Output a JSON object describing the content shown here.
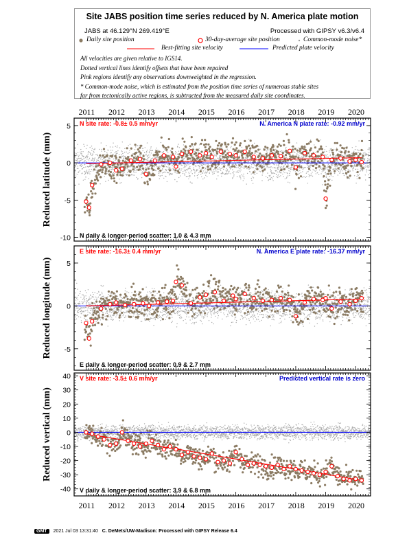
{
  "header": {
    "title": "Site JABS position time series reduced by N. America plate motion",
    "site_coords": "JABS at 46.129°N 269.419°E",
    "processing": "Processed with GIPSY v6.3/v6.4",
    "legend_daily": "Daily site position",
    "legend_avg": "30-day-average site position",
    "legend_cm": "Common-mode noise*",
    "legend_fit": "Best-fitting site velocity",
    "legend_pred": "Predicted plate velocity",
    "notes": [
      "All velocities are given relative to IGS14.",
      "Dotted vertical lines identify offsets that have been repaired",
      "Pink regions identify any observations downweighted in the regression.",
      "* Common-mode noise, which is estimated from the position time series of numerous stable sites",
      "far from tectonically active regions, is subtracted from the measured daily site coordinates."
    ]
  },
  "colors": {
    "daily": "#8b7b63",
    "common_mode": "#aaaaaa",
    "average_fill": "#ffffff",
    "average_edge": "#ff0000",
    "fit": "#ff0000",
    "predicted": "#0000ff",
    "site_rate_text": "#ff0000",
    "plate_rate_text": "#0000cc"
  },
  "chart_data": [
    {
      "type": "scatter",
      "ylabel": "Reduced latitude (mm)",
      "xlim": [
        2010.6,
        2020.5
      ],
      "ylim": [
        -10.5,
        6
      ],
      "yticks": [
        -10,
        -5,
        0,
        5
      ],
      "xticks": [
        2011,
        2012,
        2013,
        2014,
        2015,
        2016,
        2017,
        2018,
        2019,
        2020
      ],
      "site_rate": "N site rate:  -0.8± 0.5 mm/yr",
      "plate_rate": "N. America N plate rate:  -0.92 mm/yr",
      "scatter_text": "N daily & longer-period scatter:    1.0 &    4.3 mm",
      "fit_line": {
        "x": [
          2011.0,
          2020.2
        ],
        "y": [
          -0.1,
          0.7
        ]
      },
      "series": [
        {
          "kind": "30-day-average",
          "x": [
            2011.0,
            2011.1,
            2011.2,
            2011.5,
            2011.8,
            2012.0,
            2012.2,
            2012.5,
            2012.8,
            2013.0,
            2013.3,
            2013.6,
            2013.9,
            2014.0,
            2014.2,
            2014.5,
            2014.8,
            2015.0,
            2015.2,
            2015.5,
            2015.8,
            2016.0,
            2016.3,
            2016.6,
            2016.9,
            2017.2,
            2017.5,
            2017.8,
            2018.0,
            2018.3,
            2018.6,
            2018.9,
            2019.0,
            2019.2,
            2019.5,
            2019.8,
            2020.0,
            2020.2
          ],
          "y": [
            -5.2,
            -6.0,
            -3.0,
            -0.2,
            0.0,
            -1.0,
            -0.8,
            0.3,
            0.5,
            -1.5,
            0.3,
            1.0,
            0.8,
            -0.5,
            1.2,
            1.5,
            1.0,
            1.3,
            0.8,
            1.5,
            1.2,
            1.0,
            1.5,
            0.8,
            0.6,
            1.0,
            0.9,
            1.6,
            -0.6,
            1.3,
            1.0,
            0.8,
            -4.8,
            0.4,
            0.6,
            0.2,
            0.4,
            0.1
          ]
        }
      ]
    },
    {
      "type": "scatter",
      "ylabel": "Reduced longitude (mm)",
      "xlim": [
        2010.6,
        2020.5
      ],
      "ylim": [
        -7.5,
        7
      ],
      "yticks": [
        -5,
        0,
        5
      ],
      "xticks": [
        2011,
        2012,
        2013,
        2014,
        2015,
        2016,
        2017,
        2018,
        2019,
        2020
      ],
      "site_rate": "E site rate:  -16.3± 0.4 mm/yr",
      "plate_rate": "N. America E plate rate:  -16.37 mm/yr",
      "scatter_text": "E daily & longer-period scatter:    0.9 &    2.7 mm",
      "fit_line": {
        "x": [
          2011.0,
          2020.2
        ],
        "y": [
          0.0,
          0.8
        ]
      },
      "series": [
        {
          "kind": "30-day-average",
          "x": [
            2011.0,
            2011.1,
            2011.2,
            2011.5,
            2011.8,
            2012.0,
            2012.3,
            2012.6,
            2012.9,
            2013.1,
            2013.4,
            2013.7,
            2013.9,
            2014.0,
            2014.2,
            2014.5,
            2014.8,
            2015.0,
            2015.3,
            2015.6,
            2015.9,
            2016.0,
            2016.3,
            2016.6,
            2016.9,
            2017.2,
            2017.5,
            2017.8,
            2018.0,
            2018.3,
            2018.6,
            2018.9,
            2019.0,
            2019.2,
            2019.5,
            2019.8,
            2020.0,
            2020.2
          ],
          "y": [
            -2.0,
            -3.8,
            -1.8,
            -0.3,
            0.2,
            0.4,
            0.1,
            0.2,
            0.3,
            0.0,
            0.4,
            0.5,
            0.6,
            2.8,
            2.4,
            0.3,
            1.0,
            1.3,
            1.6,
            0.6,
            1.2,
            0.8,
            1.4,
            0.9,
            0.6,
            0.7,
            0.9,
            0.7,
            -1.2,
            0.4,
            0.8,
            0.7,
            0.9,
            -0.3,
            0.5,
            0.2,
            0.6,
            0.9
          ]
        }
      ]
    },
    {
      "type": "scatter",
      "ylabel": "Reduced vertical (mm)",
      "xlim": [
        2010.6,
        2020.5
      ],
      "ylim": [
        -45,
        42
      ],
      "yticks": [
        -40,
        -30,
        -20,
        -10,
        0,
        10,
        20,
        30,
        40
      ],
      "xticks": [
        2011,
        2012,
        2013,
        2014,
        2015,
        2016,
        2017,
        2018,
        2019,
        2020
      ],
      "site_rate": "V site rate:  -3.5± 0.6 mm/yr",
      "plate_rate": "Predicted vertical rate is zero",
      "scatter_text": "V daily & longer-period scatter:    3.9 &    6.8 mm",
      "fit_line": {
        "x": [
          2011.0,
          2020.2
        ],
        "y": [
          -1.0,
          -34.0
        ]
      },
      "series": [
        {
          "kind": "30-day-average",
          "x": [
            2011.0,
            2011.2,
            2011.4,
            2011.6,
            2011.8,
            2012.0,
            2012.2,
            2012.4,
            2012.6,
            2012.8,
            2013.0,
            2013.2,
            2013.4,
            2013.6,
            2013.8,
            2014.0,
            2014.2,
            2014.4,
            2014.6,
            2014.8,
            2015.0,
            2015.2,
            2015.4,
            2015.6,
            2015.8,
            2016.0,
            2016.2,
            2016.4,
            2016.6,
            2016.8,
            2017.0,
            2017.2,
            2017.4,
            2017.6,
            2017.8,
            2018.0,
            2018.2,
            2018.4,
            2018.6,
            2018.8,
            2019.0,
            2019.2,
            2019.4,
            2019.6,
            2019.8,
            2020.0,
            2020.2
          ],
          "y": [
            0,
            -1,
            -3,
            -5,
            -9,
            -8,
            0,
            -6,
            -8,
            -10,
            -8,
            -6,
            -9,
            -12,
            -10,
            -12,
            -16,
            -14,
            -17,
            -18,
            -19,
            -15,
            -21,
            -20,
            -22,
            -14,
            -19,
            -23,
            -22,
            -23,
            -24,
            -25,
            -23,
            -26,
            -24,
            -26,
            -27,
            -28,
            -29,
            -30,
            -28,
            -24,
            -31,
            -33,
            -34,
            -33,
            -34
          ]
        }
      ]
    }
  ],
  "footer": {
    "logo": "GMT",
    "timestamp": "2021 Jul 03 13:31:40",
    "credit": "C. DeMets/UW-Madison: Processed with GIPSY Release 6.4"
  }
}
